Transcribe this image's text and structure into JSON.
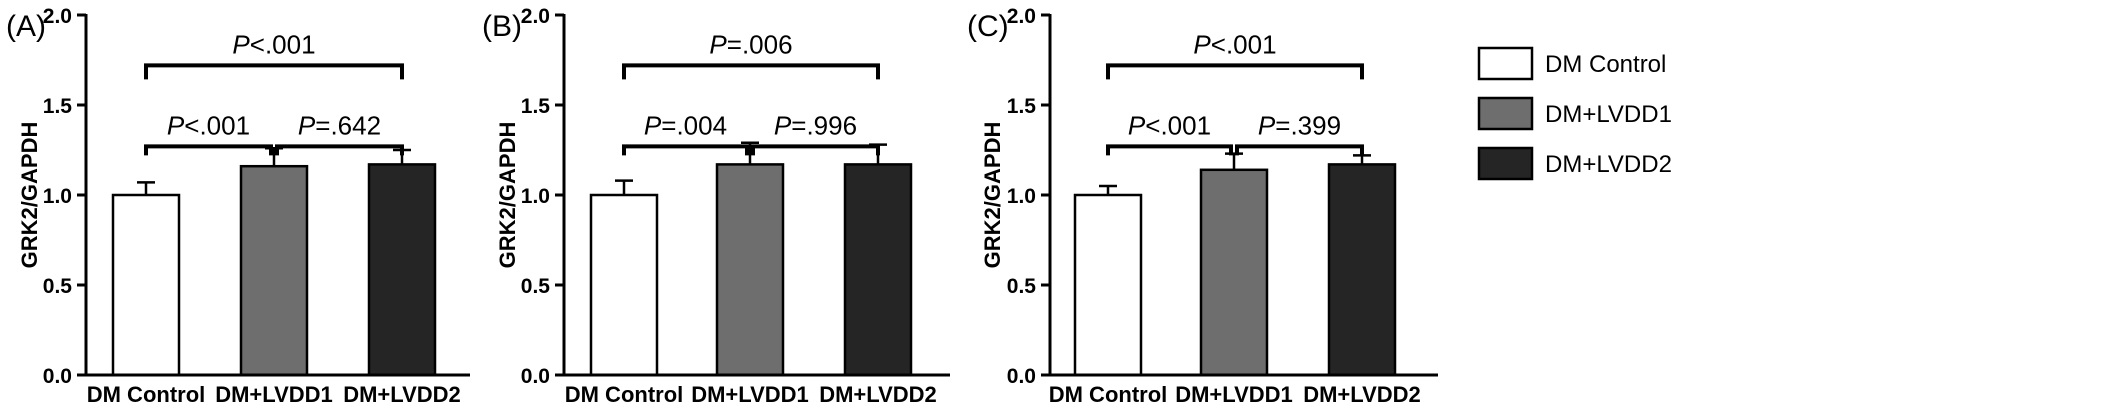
{
  "colors": {
    "dm_control": "#ffffff",
    "dm_lvdd1": "#6e6e6e",
    "dm_lvdd2": "#252525",
    "axis": "#000000"
  },
  "legend": {
    "placement": "right",
    "items": [
      {
        "label": "DM Control",
        "color": "#ffffff"
      },
      {
        "label": "DM+LVDD1",
        "color": "#6e6e6e"
      },
      {
        "label": "DM+LVDD2",
        "color": "#252525"
      }
    ]
  },
  "chart_data": [
    {
      "panel": "(A)",
      "type": "bar",
      "categories": [
        "DM Control",
        "DM+LVDD1",
        "DM+LVDD2"
      ],
      "values": [
        1.0,
        1.16,
        1.17
      ],
      "errors": [
        0.07,
        0.1,
        0.08
      ],
      "ylabel": "GRK2/GAPDH",
      "ylim": [
        0,
        2.0
      ],
      "yticks": [
        "0.0",
        "0.5",
        "1.0",
        "1.5",
        "2.0"
      ],
      "comparisons": [
        {
          "from": 0,
          "to": 2,
          "p": "<.001",
          "y": 1.72
        },
        {
          "from": 0,
          "to": 1,
          "p": "<.001",
          "y": 1.27
        },
        {
          "from": 1,
          "to": 2,
          "p": "=.642",
          "y": 1.27
        }
      ]
    },
    {
      "panel": "(B)",
      "type": "bar",
      "categories": [
        "DM Control",
        "DM+LVDD1",
        "DM+LVDD2"
      ],
      "values": [
        1.0,
        1.17,
        1.17
      ],
      "errors": [
        0.08,
        0.12,
        0.11
      ],
      "ylabel": "GRK2/GAPDH",
      "ylim": [
        0,
        2.0
      ],
      "yticks": [
        "0.0",
        "0.5",
        "1.0",
        "1.5",
        "2.0"
      ],
      "comparisons": [
        {
          "from": 0,
          "to": 2,
          "p": "=.006",
          "y": 1.72
        },
        {
          "from": 0,
          "to": 1,
          "p": "=.004",
          "y": 1.27
        },
        {
          "from": 1,
          "to": 2,
          "p": "=.996",
          "y": 1.27
        }
      ]
    },
    {
      "panel": "(C)",
      "type": "bar",
      "categories": [
        "DM Control",
        "DM+LVDD1",
        "DM+LVDD2"
      ],
      "values": [
        1.0,
        1.14,
        1.17
      ],
      "errors": [
        0.05,
        0.09,
        0.05
      ],
      "ylabel": "GRK2/GAPDH",
      "ylim": [
        0,
        2.0
      ],
      "yticks": [
        "0.0",
        "0.5",
        "1.0",
        "1.5",
        "2.0"
      ],
      "comparisons": [
        {
          "from": 0,
          "to": 2,
          "p": "<.001",
          "y": 1.72
        },
        {
          "from": 0,
          "to": 1,
          "p": "<.001",
          "y": 1.27
        },
        {
          "from": 1,
          "to": 2,
          "p": "=.399",
          "y": 1.27
        }
      ]
    }
  ]
}
